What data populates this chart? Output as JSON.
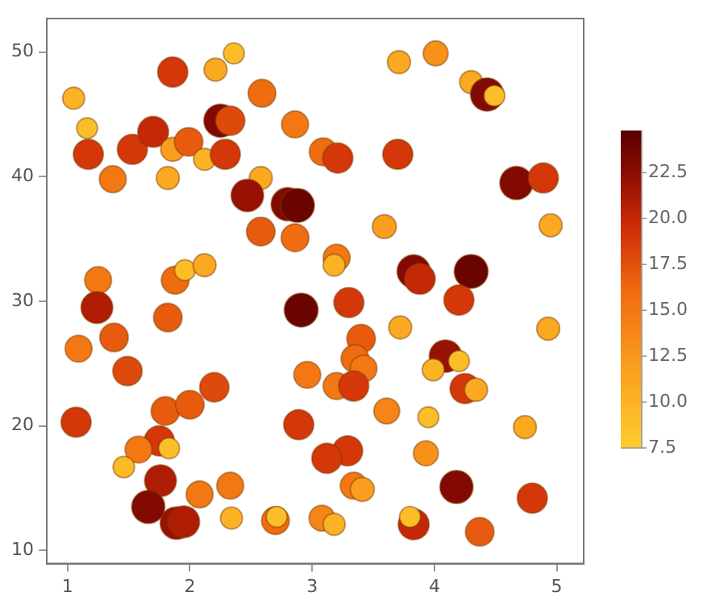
{
  "chart_data": {
    "type": "bubble",
    "x": [
      1.05,
      1.16,
      1.17,
      1.37,
      1.53,
      1.7,
      1.86,
      1.86,
      1.99,
      1.82,
      2.12,
      2.21,
      2.36,
      2.25,
      2.33,
      2.29,
      2.59,
      2.58,
      2.47,
      2.58,
      2.8,
      2.88,
      2.86,
      2.86,
      1.25,
      1.88,
      1.96,
      2.12,
      3.71,
      4.01,
      4.3,
      4.43,
      4.49,
      3.09,
      3.21,
      3.7,
      4.67,
      4.89,
      3.59,
      4.95,
      3.2,
      3.18,
      3.83,
      3.88,
      4.3,
      1.24,
      1.09,
      1.38,
      1.49,
      1.82,
      1.07,
      1.8,
      2.0,
      2.2,
      1.75,
      1.83,
      1.58,
      1.46,
      1.76,
      1.66,
      1.89,
      1.95,
      2.08,
      2.33,
      2.34,
      2.7,
      2.71,
      2.91,
      2.96,
      2.89,
      3.3,
      4.2,
      3.72,
      4.93,
      3.4,
      3.35,
      3.42,
      4.09,
      4.2,
      3.99,
      3.2,
      3.34,
      4.25,
      4.34,
      3.61,
      3.95,
      4.74,
      3.29,
      3.12,
      3.93,
      3.34,
      3.41,
      4.18,
      4.8,
      3.08,
      3.18,
      3.83,
      3.8,
      4.37
    ],
    "values": [
      46.3,
      43.9,
      41.8,
      39.8,
      42.2,
      43.6,
      48.4,
      42.2,
      42.8,
      39.9,
      41.4,
      48.6,
      49.9,
      44.5,
      44.5,
      41.8,
      46.7,
      39.9,
      38.5,
      35.6,
      37.8,
      37.7,
      35.1,
      44.2,
      31.7,
      31.7,
      32.5,
      32.9,
      49.2,
      49.9,
      47.6,
      46.6,
      46.5,
      42.0,
      41.5,
      41.8,
      39.5,
      39.9,
      36.0,
      36.1,
      33.5,
      32.9,
      32.4,
      31.8,
      32.4,
      29.5,
      26.2,
      27.1,
      24.4,
      28.7,
      20.3,
      21.2,
      21.7,
      23.1,
      18.8,
      18.2,
      18.1,
      16.7,
      15.6,
      13.5,
      12.2,
      12.3,
      14.5,
      15.2,
      12.6,
      12.4,
      12.7,
      29.3,
      24.1,
      20.1,
      29.9,
      30.1,
      27.9,
      27.8,
      27.0,
      25.4,
      24.6,
      25.6,
      25.2,
      24.5,
      23.2,
      23.2,
      23.0,
      22.9,
      21.2,
      20.7,
      19.9,
      18.0,
      17.4,
      17.8,
      15.2,
      14.9,
      15.1,
      14.2,
      12.6,
      12.1,
      12.1,
      12.7,
      11.5
    ],
    "cvalues": [
      10,
      9,
      19,
      15,
      19,
      20,
      19,
      12,
      17,
      11,
      10,
      11,
      9,
      23,
      18,
      19,
      16,
      11,
      22,
      17,
      23,
      24,
      16,
      15,
      15,
      16,
      9,
      11,
      11,
      13,
      11,
      23,
      9,
      16,
      19,
      19,
      23,
      19,
      12,
      11,
      15,
      10,
      23,
      20,
      24,
      21,
      15,
      17,
      18,
      17,
      19,
      17,
      17,
      18,
      19,
      9,
      15,
      9.5,
      21,
      23,
      22,
      21,
      15,
      15,
      10,
      16,
      9,
      24,
      15,
      19,
      19,
      19,
      11,
      11,
      17,
      16,
      15,
      22,
      9,
      10,
      15,
      19,
      19,
      11,
      14,
      9,
      11,
      19,
      19,
      13,
      15,
      12,
      23,
      19,
      14,
      10,
      20,
      9,
      17
    ],
    "sizes": [
      0.42,
      0.38,
      0.79,
      0.63,
      0.79,
      0.83,
      0.79,
      0.5,
      0.71,
      0.46,
      0.42,
      0.46,
      0.38,
      0.96,
      0.75,
      0.79,
      0.67,
      0.46,
      0.92,
      0.71,
      0.96,
      1,
      0.67,
      0.63,
      0.63,
      0.67,
      0.38,
      0.46,
      0.46,
      0.54,
      0.46,
      0.96,
      0.38,
      0.67,
      0.79,
      0.79,
      0.96,
      0.79,
      0.5,
      0.46,
      0.63,
      0.42,
      0.96,
      0.83,
      1,
      0.88,
      0.63,
      0.71,
      0.75,
      0.71,
      0.79,
      0.71,
      0.71,
      0.75,
      0.79,
      0.38,
      0.63,
      0.4,
      0.88,
      0.96,
      0.92,
      0.88,
      0.63,
      0.63,
      0.42,
      0.67,
      0.38,
      1,
      0.63,
      0.79,
      0.79,
      0.79,
      0.46,
      0.46,
      0.71,
      0.67,
      0.63,
      0.92,
      0.38,
      0.42,
      0.63,
      0.79,
      0.79,
      0.46,
      0.58,
      0.38,
      0.46,
      0.79,
      0.79,
      0.54,
      0.63,
      0.5,
      0.96,
      0.79,
      0.58,
      0.42,
      0.83,
      0.38,
      0.71
    ],
    "xlim": [
      0.83,
      5.22
    ],
    "xticks": [
      1,
      2,
      3,
      4,
      5
    ],
    "ylim": [
      8.95,
      52.7
    ],
    "yticks": [
      10,
      20,
      30,
      40,
      50
    ],
    "clim": [
      7.5,
      24.8
    ],
    "cticks": [
      {
        "value": 7.5,
        "label": "7.5"
      },
      {
        "value": 10,
        "label": "10.0"
      },
      {
        "value": 12.5,
        "label": "12.5"
      },
      {
        "value": 15,
        "label": "15.0"
      },
      {
        "value": 17.5,
        "label": "17.5"
      },
      {
        "value": 20,
        "label": "20.0"
      },
      {
        "value": 22.5,
        "label": "22.5"
      }
    ],
    "grid": false,
    "legend": false
  }
}
